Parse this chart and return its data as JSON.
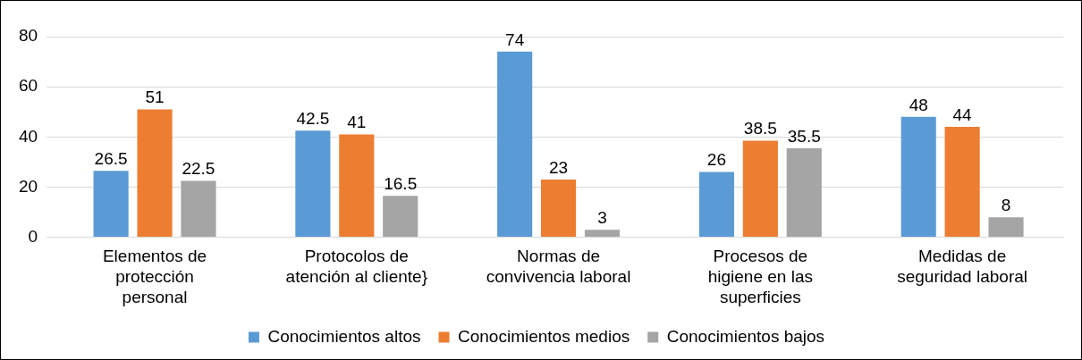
{
  "chart_data": {
    "type": "bar",
    "categories": [
      "Elementos de\nprotección\npersonal",
      "Protocolos de\natención al cliente}",
      "Normas de\nconvivencia laboral",
      "Procesos de\nhigiene en las\nsuperficies",
      "Medidas de\nseguridad laboral"
    ],
    "series": [
      {
        "name": "Conocimientos altos",
        "color": "#5b9bd5",
        "values": [
          26.5,
          42.5,
          74,
          26,
          48
        ]
      },
      {
        "name": "Conocimientos medios",
        "color": "#ed7d31",
        "values": [
          51,
          41,
          23,
          38.5,
          44
        ]
      },
      {
        "name": "Conocimientos bajos",
        "color": "#a5a5a5",
        "values": [
          22.5,
          16.5,
          3,
          35.5,
          8
        ]
      }
    ],
    "ylim": [
      0,
      80
    ],
    "yticks": [
      0,
      20,
      40,
      60,
      80
    ],
    "grid": "y",
    "legend": "bottom",
    "data_labels": true
  }
}
